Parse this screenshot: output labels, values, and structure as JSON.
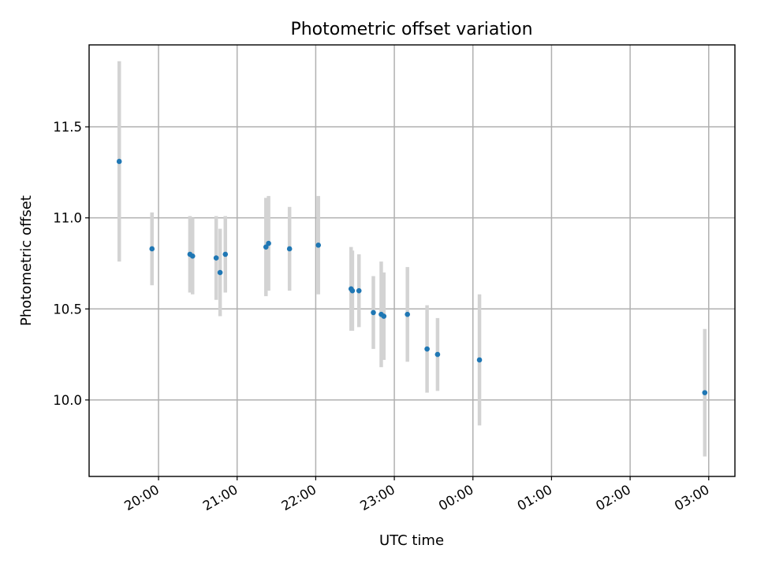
{
  "chart_data": {
    "type": "scatter",
    "title": "Photometric offset variation",
    "xlabel": "UTC time",
    "ylabel": "Photometric offset",
    "x_ticks": [
      "20:00",
      "21:00",
      "22:00",
      "23:00",
      "00:00",
      "01:00",
      "02:00",
      "03:00"
    ],
    "y_ticks": [
      "10.0",
      "10.5",
      "11.0",
      "11.5"
    ],
    "grid": true,
    "x_unit": "hours (UTC, continuing past midnight)",
    "xlim": [
      "19:07",
      "03:20"
    ],
    "ylim": [
      9.58,
      11.95
    ],
    "colors": {
      "points": "#1f77b4",
      "error_bars": "#d3d3d3"
    },
    "points": [
      {
        "x": "19:30",
        "y": 11.31,
        "err": 0.55
      },
      {
        "x": "19:55",
        "y": 10.83,
        "err": 0.2
      },
      {
        "x": "20:24",
        "y": 10.8,
        "err": 0.21
      },
      {
        "x": "20:26",
        "y": 10.79,
        "err": 0.21
      },
      {
        "x": "20:44",
        "y": 10.78,
        "err": 0.23
      },
      {
        "x": "20:47",
        "y": 10.7,
        "err": 0.24
      },
      {
        "x": "20:51",
        "y": 10.8,
        "err": 0.21
      },
      {
        "x": "21:22",
        "y": 10.84,
        "err": 0.27
      },
      {
        "x": "21:24",
        "y": 10.86,
        "err": 0.26
      },
      {
        "x": "21:40",
        "y": 10.83,
        "err": 0.23
      },
      {
        "x": "22:02",
        "y": 10.85,
        "err": 0.27
      },
      {
        "x": "22:27",
        "y": 10.61,
        "err": 0.23
      },
      {
        "x": "22:28",
        "y": 10.6,
        "err": 0.22
      },
      {
        "x": "22:33",
        "y": 10.6,
        "err": 0.2
      },
      {
        "x": "22:44",
        "y": 10.48,
        "err": 0.2
      },
      {
        "x": "22:50",
        "y": 10.47,
        "err": 0.29
      },
      {
        "x": "22:52",
        "y": 10.46,
        "err": 0.24
      },
      {
        "x": "23:10",
        "y": 10.47,
        "err": 0.26
      },
      {
        "x": "23:25",
        "y": 10.28,
        "err": 0.24
      },
      {
        "x": "23:33",
        "y": 10.25,
        "err": 0.2
      },
      {
        "x": "00:05",
        "y": 10.22,
        "err": 0.36
      },
      {
        "x": "02:57",
        "y": 10.04,
        "err": 0.35
      }
    ]
  }
}
